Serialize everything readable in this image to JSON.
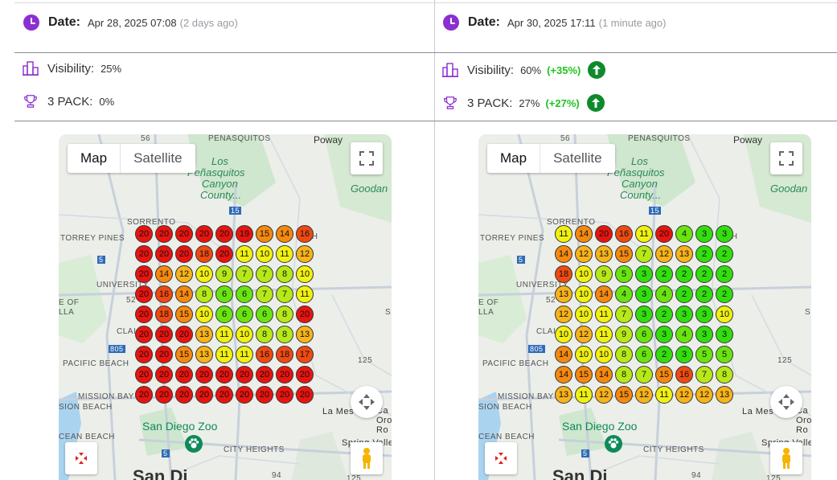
{
  "left": {
    "date": {
      "label": "Date:",
      "value": "Apr 28, 2025 07:08",
      "ago": "(2 days ago)"
    },
    "visibility": {
      "label": "Visibility:",
      "value": "25%",
      "delta": null
    },
    "three_pack": {
      "label": "3 PACK:",
      "value": "0%",
      "delta": null
    },
    "grid": [
      [
        20,
        20,
        20,
        20,
        20,
        19,
        15,
        14,
        16
      ],
      [
        20,
        20,
        20,
        18,
        20,
        11,
        10,
        11,
        12
      ],
      [
        20,
        14,
        12,
        10,
        9,
        7,
        7,
        8,
        10
      ],
      [
        20,
        16,
        14,
        8,
        6,
        6,
        7,
        7,
        11
      ],
      [
        20,
        18,
        15,
        10,
        6,
        6,
        6,
        8,
        20
      ],
      [
        20,
        20,
        20,
        13,
        11,
        10,
        8,
        8,
        13
      ],
      [
        20,
        20,
        15,
        13,
        11,
        11,
        16,
        18,
        17
      ],
      [
        20,
        20,
        20,
        20,
        20,
        20,
        20,
        20,
        20
      ],
      [
        20,
        20,
        20,
        20,
        20,
        20,
        20,
        20,
        20
      ]
    ]
  },
  "right": {
    "date": {
      "label": "Date:",
      "value": "Apr 30, 2025 17:11",
      "ago": "(1 minute ago)"
    },
    "visibility": {
      "label": "Visibility:",
      "value": "60%",
      "delta": "(+35%)"
    },
    "three_pack": {
      "label": "3 PACK:",
      "value": "27%",
      "delta": "(+27%)"
    },
    "grid": [
      [
        11,
        14,
        20,
        16,
        11,
        20,
        4,
        3,
        3
      ],
      [
        14,
        12,
        13,
        15,
        7,
        12,
        13,
        2,
        2
      ],
      [
        18,
        10,
        9,
        5,
        3,
        2,
        2,
        2,
        2
      ],
      [
        13,
        10,
        14,
        4,
        3,
        4,
        2,
        2,
        2
      ],
      [
        12,
        10,
        11,
        7,
        3,
        2,
        3,
        3,
        10
      ],
      [
        10,
        12,
        11,
        9,
        6,
        3,
        4,
        3,
        3
      ],
      [
        14,
        10,
        10,
        8,
        6,
        2,
        3,
        5,
        5
      ],
      [
        14,
        15,
        14,
        8,
        7,
        15,
        16,
        7,
        8
      ],
      [
        13,
        11,
        12,
        15,
        12,
        11,
        12,
        12,
        13
      ]
    ]
  },
  "map": {
    "type_map": "Map",
    "type_satellite": "Satellite",
    "labels": {
      "penasquitos": "PEÑASQUITOS",
      "poway": "Poway",
      "los": "Los",
      "penasquitos_park": "Peñasquitos",
      "canyon": "Canyon",
      "county": "County...",
      "goodan": "Goodan",
      "sorrento": "SORRENTO",
      "torrey_pines": "TORREY PINES",
      "university": "UNIVERSITY",
      "e_of": "E OF",
      "lla": "LLA",
      "clai": "CLAI",
      "pacific_beach": "PACIFIC BEACH",
      "mission_bay": "MISSION BAY",
      "sion_beach": "SION BEACH",
      "zoo": "San Diego Zoo",
      "cean_beach": "CEAN BEACH",
      "city_heights": "CITY HEIGHTS",
      "la_mesa": "La Mes",
      "spring_valley": "Spring Valle",
      "san_diego": "San Di",
      "ch": "CH",
      "s": "S",
      "route_56": "56",
      "route_15": "15",
      "route_5a": "5",
      "route_805": "805",
      "route_52": "52",
      "route_5b": "5",
      "route_125": "125",
      "route_94": "94",
      "route_125b": "125",
      "route_5c": "5",
      "ca_oro": "Ca",
      "oro": "Oro",
      "ro": "Ro"
    }
  },
  "colors": {
    "accent": "#8b2fd1",
    "positive": "#21c320",
    "up_badge": "#0e8a2d"
  }
}
